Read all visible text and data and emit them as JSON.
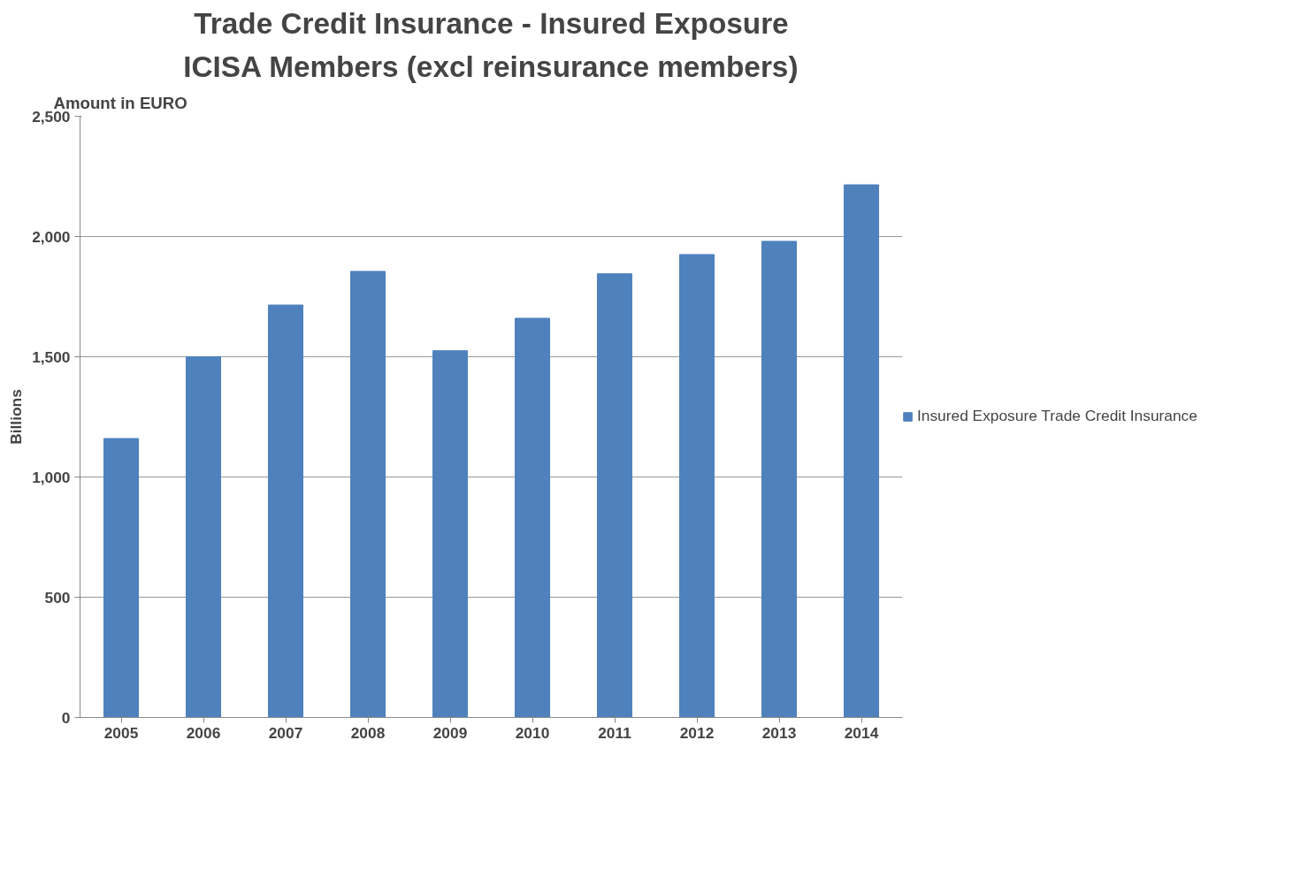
{
  "chart_data": {
    "type": "bar",
    "title": "Trade Credit Insurance - Insured Exposure",
    "subtitle": "ICISA Members (excl reinsurance members)",
    "ylabel": "Billions",
    "annotations": [
      "Amount in EURO"
    ],
    "categories": [
      "2005",
      "2006",
      "2007",
      "2008",
      "2009",
      "2010",
      "2011",
      "2012",
      "2013",
      "2014"
    ],
    "series": [
      {
        "name": "Insured Exposure Trade Credit Insurance",
        "color": "#4f81bd",
        "values": [
          1160,
          1500,
          1715,
          1855,
          1525,
          1660,
          1845,
          1925,
          1980,
          2215
        ]
      }
    ],
    "ylim": [
      0,
      2500
    ],
    "yticks": [
      {
        "value": 0,
        "label": "0"
      },
      {
        "value": 500,
        "label": "500"
      },
      {
        "value": 1000,
        "label": "1,000"
      },
      {
        "value": 1500,
        "label": "1,500"
      },
      {
        "value": 2000,
        "label": "2,000"
      },
      {
        "value": 2500,
        "label": "2,500"
      }
    ],
    "grid": "y",
    "legend": "right"
  }
}
